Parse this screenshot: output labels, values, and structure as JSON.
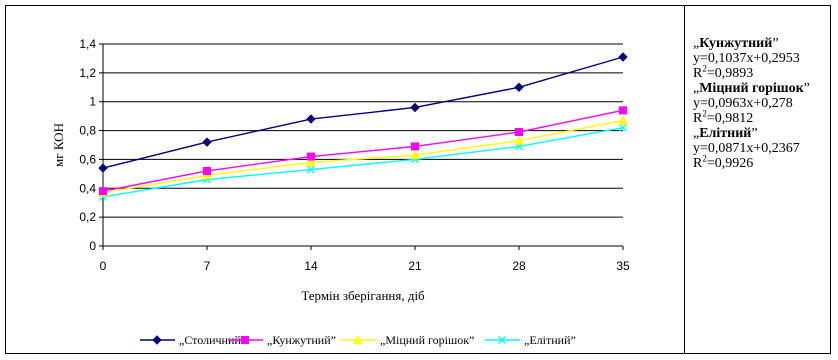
{
  "chart_data": {
    "type": "line",
    "title": "",
    "xlabel": "Термін зберігання, діб",
    "ylabel": "мг КОН",
    "x": [
      0,
      7,
      14,
      21,
      28,
      35
    ],
    "xlim": [
      0,
      35
    ],
    "ylim": [
      0,
      1.4
    ],
    "ytick_values": [
      0,
      0.2,
      0.4,
      0.6,
      0.8,
      1,
      1.2,
      1.4
    ],
    "ytick_labels": [
      "0",
      "0,2",
      "0,4",
      "0,6",
      "0,8",
      "1",
      "1,2",
      "1,4"
    ],
    "grid": true,
    "legend_position": "bottom",
    "series": [
      {
        "name": "„Столичний”",
        "values": [
          0.54,
          0.72,
          0.88,
          0.96,
          1.1,
          1.31
        ],
        "color": "#000080",
        "marker": "diamond"
      },
      {
        "name": "„Кунжутний”",
        "values": [
          0.38,
          0.52,
          0.62,
          0.69,
          0.79,
          0.94
        ],
        "color": "#FF00FF",
        "marker": "square"
      },
      {
        "name": "„Міцний горішок”",
        "values": [
          0.37,
          0.49,
          0.58,
          0.63,
          0.73,
          0.87
        ],
        "color": "#FFFF00",
        "marker": "triangle"
      },
      {
        "name": "„Елітний”",
        "values": [
          0.34,
          0.46,
          0.53,
          0.6,
          0.69,
          0.82
        ],
        "color": "#00FFFF",
        "marker": "x"
      }
    ],
    "annotations": [
      {
        "name": "Кунжутний",
        "equation": "y=0,1037x+0,2953",
        "r2": "=0,9893"
      },
      {
        "name": "Міцний горішок",
        "equation": "y=0,0963x+0,278",
        "r2": "=0,9812"
      },
      {
        "name": "Елітний",
        "equation": "y=0,0871x+0,2367",
        "r2": "=0,9926"
      }
    ],
    "r_label": "R",
    "r_sup": "2",
    "quote_open": "„",
    "quote_close": "”"
  }
}
